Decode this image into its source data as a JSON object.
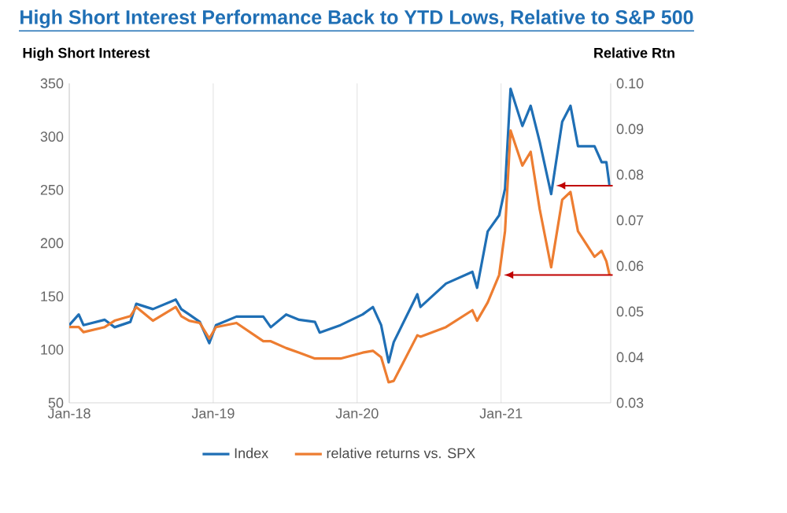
{
  "chart_data": {
    "type": "line",
    "title": "High Short Interest Performance Back to YTD Lows,  Relative to S&P 500",
    "ylabel": "High Short Interest",
    "y2label": "Relative Rtn",
    "xlim": [
      "2018-01-01",
      "2021-10-06"
    ],
    "xticks": [
      {
        "value": "2018-01-01",
        "label": "Jan-18"
      },
      {
        "value": "2019-01-01",
        "label": "Jan-19"
      },
      {
        "value": "2020-01-01",
        "label": "Jan-20"
      },
      {
        "value": "2021-01-01",
        "label": "Jan-21"
      }
    ],
    "ylim": [
      50,
      350
    ],
    "yticks": [
      50,
      100,
      150,
      200,
      250,
      300,
      350
    ],
    "y2lim": [
      0.03,
      0.1
    ],
    "y2ticks": [
      0.03,
      0.04,
      0.05,
      0.06,
      0.07,
      0.08,
      0.09,
      {
        "value": 0.1,
        "label": "0.10"
      }
    ],
    "grid": "x",
    "legend": "bottom",
    "x": [
      "2018-01-01",
      "2018-01-25",
      "2018-02-06",
      "2018-04-01",
      "2018-04-26",
      "2018-06-05",
      "2018-06-20",
      "2018-08-01",
      "2018-09-28",
      "2018-10-12",
      "2018-11-01",
      "2018-11-28",
      "2018-12-22",
      "2019-01-08",
      "2019-03-01",
      "2019-05-08",
      "2019-05-27",
      "2019-07-05",
      "2019-08-07",
      "2019-09-16",
      "2019-09-28",
      "2019-11-20",
      "2020-01-15",
      "2020-02-10",
      "2020-03-02",
      "2020-03-21",
      "2020-04-03",
      "2020-06-02",
      "2020-06-10",
      "2020-08-14",
      "2020-10-20",
      "2020-11-01",
      "2020-11-28",
      "2020-12-27",
      "2021-01-11",
      "2021-01-25",
      "2021-02-24",
      "2021-03-17",
      "2021-04-09",
      "2021-05-08",
      "2021-06-05",
      "2021-06-26",
      "2021-07-15",
      "2021-08-26",
      "2021-09-13",
      "2021-09-25",
      "2021-10-03"
    ],
    "series": [
      {
        "name": "Index",
        "color": "#1f6fb5",
        "values": [
          123,
          133,
          123,
          128,
          121,
          126,
          143,
          138,
          147,
          138,
          133,
          126,
          106,
          123,
          131,
          131,
          121,
          133,
          128,
          126,
          116,
          123,
          133,
          140,
          123,
          88,
          107,
          152,
          140,
          162,
          173,
          158,
          211,
          226,
          251,
          345,
          310,
          329,
          295,
          246,
          314,
          329,
          291,
          291,
          276,
          276,
          254
        ]
      },
      {
        "name": "relative returns vs. SPX",
        "color": "#ed7d31",
        "axis": "y2",
        "values": [
          0.0466,
          0.0466,
          0.0455,
          0.0466,
          0.048,
          0.049,
          0.051,
          0.048,
          0.051,
          0.049,
          0.048,
          0.0475,
          0.0441,
          0.0466,
          0.0475,
          0.0435,
          0.0435,
          0.042,
          0.041,
          0.0397,
          0.0397,
          0.0397,
          0.041,
          0.0414,
          0.04,
          0.0345,
          0.0348,
          0.0448,
          0.0445,
          0.0466,
          0.0503,
          0.048,
          0.052,
          0.058,
          0.0676,
          0.0897,
          0.082,
          0.085,
          0.0724,
          0.0597,
          0.0745,
          0.0762,
          0.0676,
          0.062,
          0.0633,
          0.061,
          0.058
        ]
      }
    ]
  }
}
